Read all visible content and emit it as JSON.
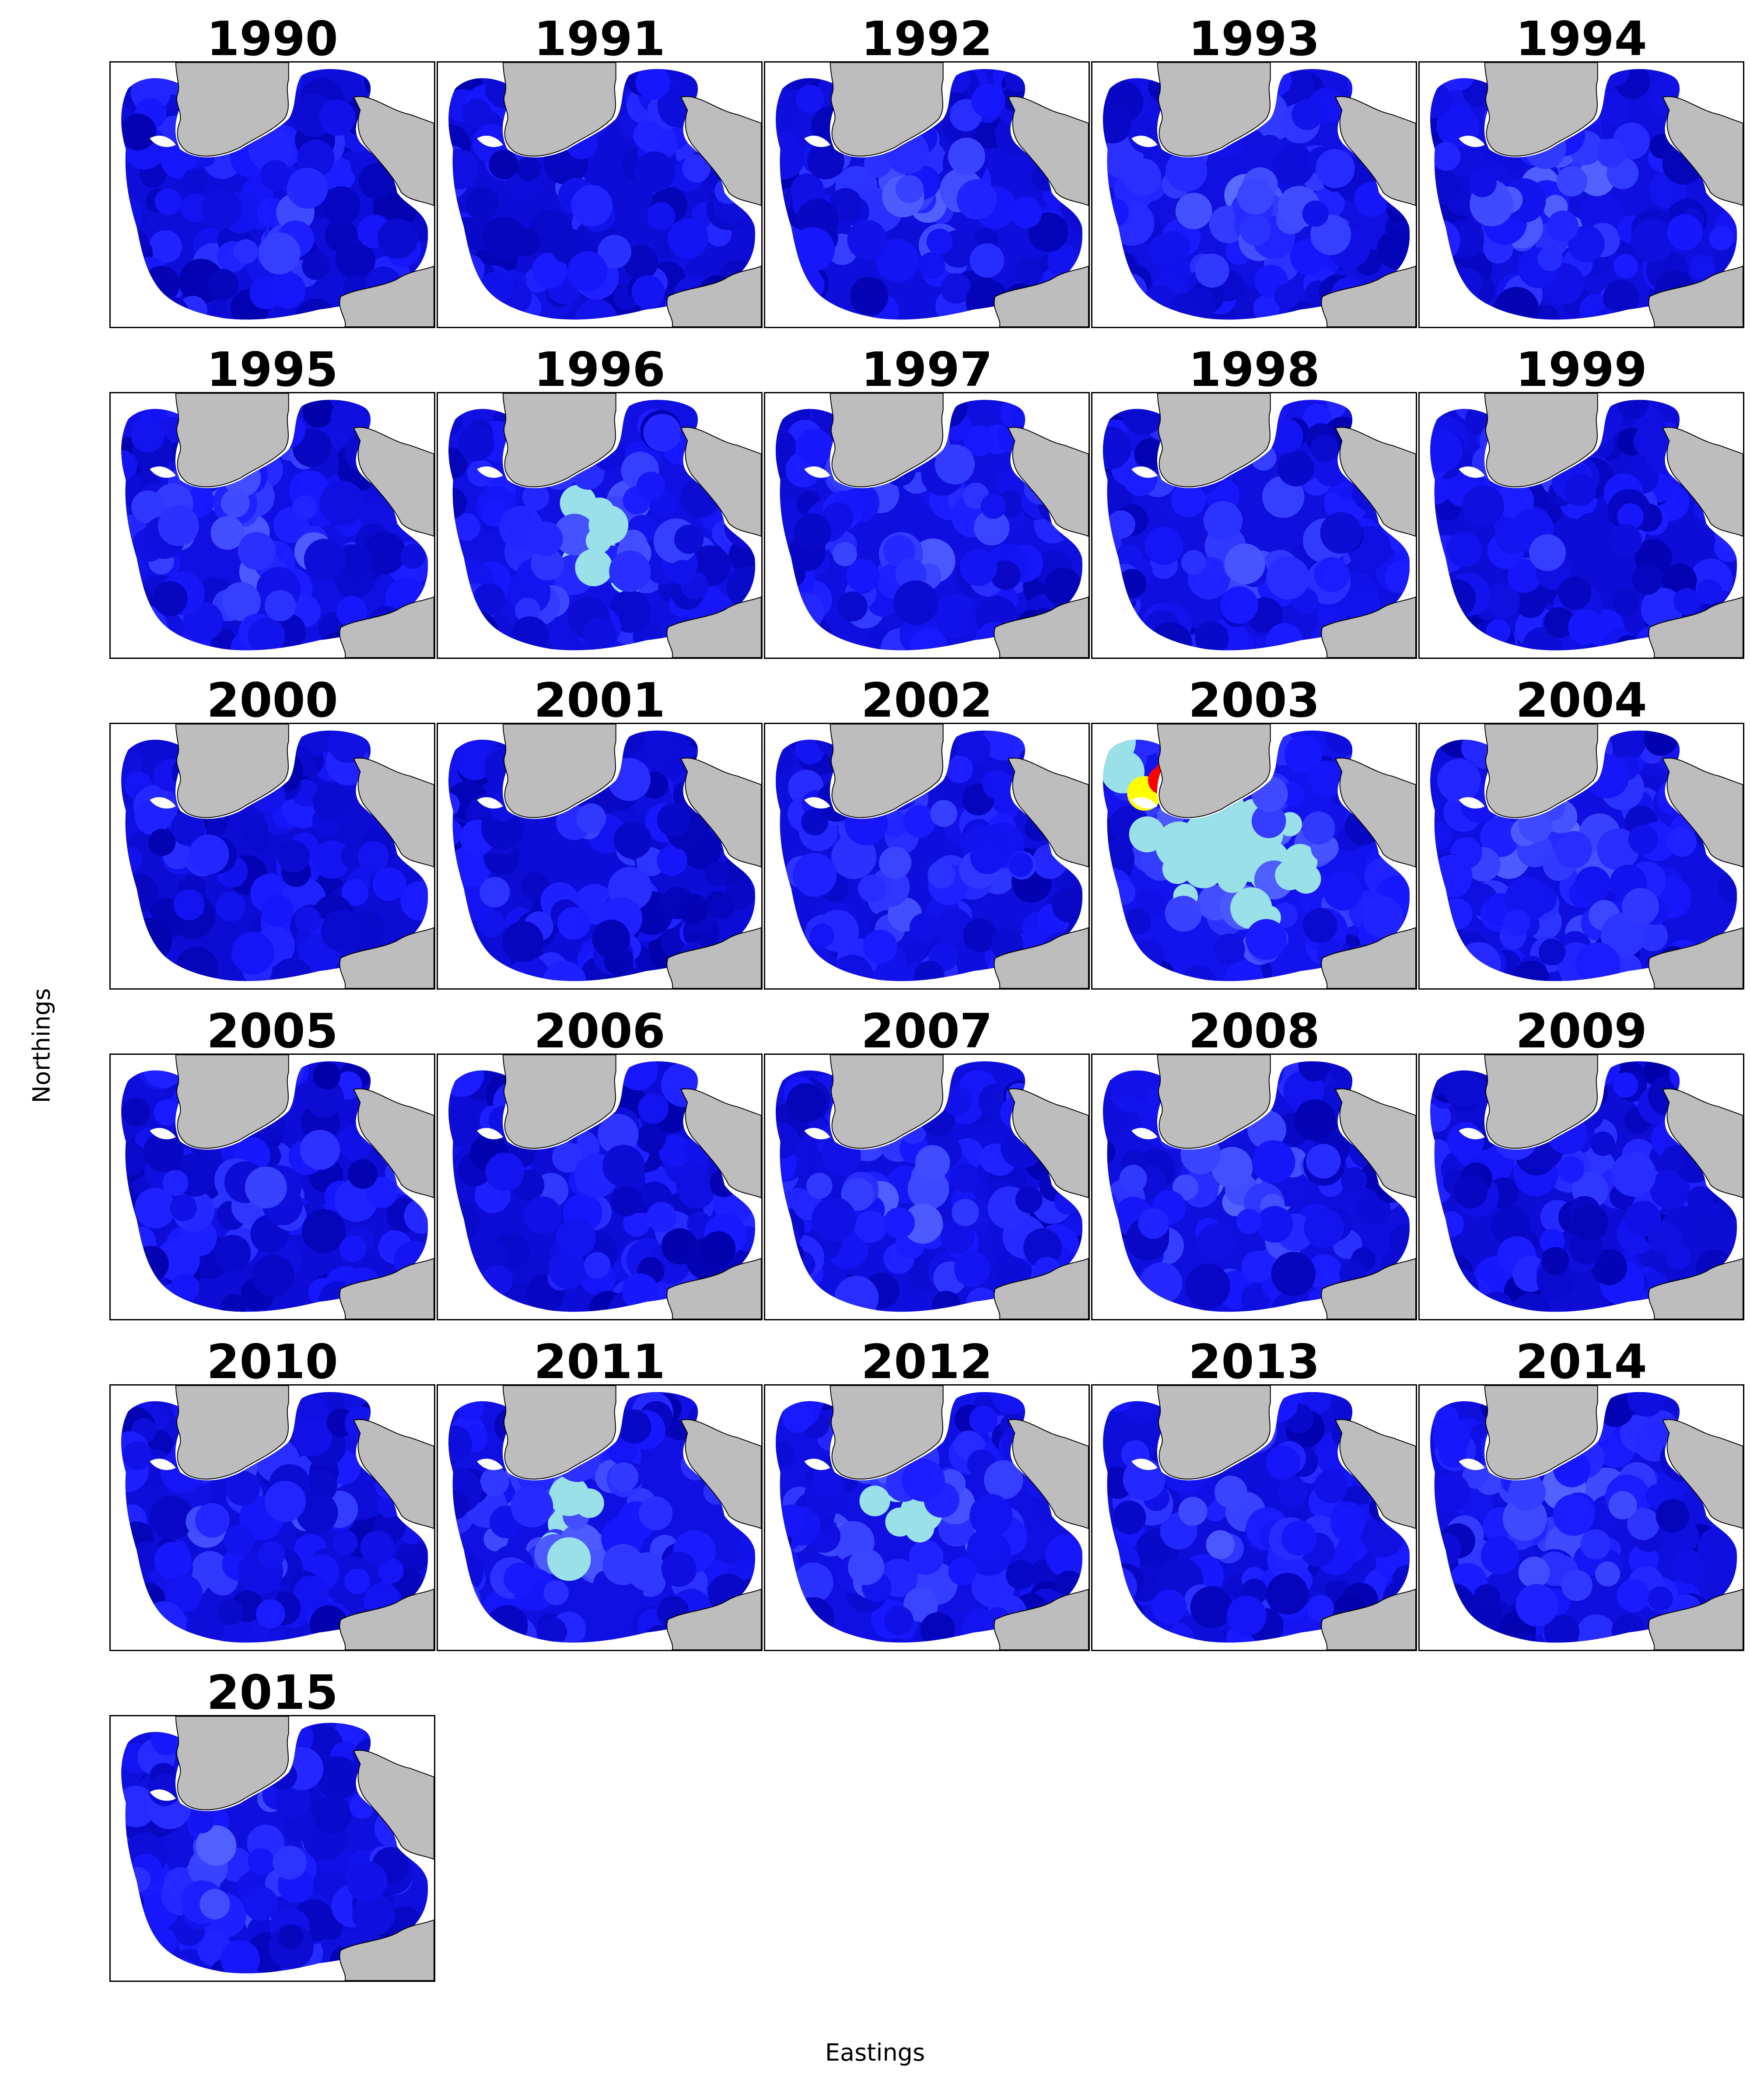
{
  "figure": {
    "xlabel": "Eastings",
    "ylabel": "Northings",
    "colors": {
      "land": "#bdbdbd",
      "sea_dark": "#0000a8",
      "sea_mid": "#1818ff",
      "sea_light": "#5a6cff",
      "cyan_high": "#9ae0e8",
      "yellow_high": "#ffff00",
      "red_high": "#ff0000"
    },
    "panels": [
      {
        "year": "1990",
        "intensity": 0.25
      },
      {
        "year": "1991",
        "intensity": 0.15
      },
      {
        "year": "1992",
        "intensity": 0.35
      },
      {
        "year": "1993",
        "intensity": 0.5
      },
      {
        "year": "1994",
        "intensity": 0.4
      },
      {
        "year": "1995",
        "intensity": 0.55
      },
      {
        "year": "1996",
        "intensity": 0.6
      },
      {
        "year": "1997",
        "intensity": 0.45
      },
      {
        "year": "1998",
        "intensity": 0.4
      },
      {
        "year": "1999",
        "intensity": 0.15
      },
      {
        "year": "2000",
        "intensity": 0.05
      },
      {
        "year": "2001",
        "intensity": 0.2
      },
      {
        "year": "2002",
        "intensity": 0.35
      },
      {
        "year": "2003",
        "intensity": 1.0
      },
      {
        "year": "2004",
        "intensity": 0.45
      },
      {
        "year": "2005",
        "intensity": 0.15
      },
      {
        "year": "2006",
        "intensity": 0.15
      },
      {
        "year": "2007",
        "intensity": 0.35
      },
      {
        "year": "2008",
        "intensity": 0.4
      },
      {
        "year": "2009",
        "intensity": 0.1
      },
      {
        "year": "2010",
        "intensity": 0.3
      },
      {
        "year": "2011",
        "intensity": 0.55
      },
      {
        "year": "2012",
        "intensity": 0.6
      },
      {
        "year": "2013",
        "intensity": 0.3
      },
      {
        "year": "2014",
        "intensity": 0.4
      },
      {
        "year": "2015",
        "intensity": 0.4
      }
    ]
  }
}
